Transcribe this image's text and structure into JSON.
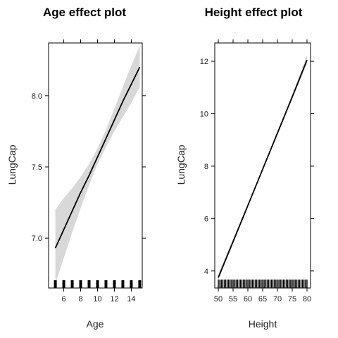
{
  "chart_data": [
    {
      "type": "line",
      "title": "Age effect plot",
      "xlabel": "Age",
      "ylabel": "LungCap",
      "xlim": [
        4.2,
        15.3
      ],
      "ylim": [
        6.65,
        8.37
      ],
      "x_ticks": [
        6,
        8,
        10,
        12,
        14
      ],
      "y_ticks": [
        7.0,
        7.5,
        8.0
      ],
      "y_tick_labels": [
        "7.0",
        "7.5",
        "8.0"
      ],
      "series": [
        {
          "x": [
            5,
            6,
            7,
            8,
            9,
            10,
            11,
            12,
            13,
            14,
            15
          ],
          "fit": [
            6.93,
            7.06,
            7.19,
            7.32,
            7.44,
            7.57,
            7.7,
            7.83,
            7.96,
            8.08,
            8.2
          ],
          "lower": [
            6.68,
            6.86,
            7.04,
            7.21,
            7.37,
            7.52,
            7.64,
            7.75,
            7.85,
            7.95,
            8.06
          ],
          "upper": [
            7.2,
            7.28,
            7.35,
            7.43,
            7.52,
            7.63,
            7.76,
            7.91,
            8.06,
            8.21,
            8.35
          ]
        }
      ],
      "rug_x": [
        5,
        6,
        7,
        8,
        9,
        10,
        11,
        12,
        13,
        14,
        15
      ]
    },
    {
      "type": "line",
      "title": "Height effect plot",
      "xlabel": "Height",
      "ylabel": "LungCap",
      "xlim": [
        48.8,
        81.2
      ],
      "ylim": [
        3.35,
        12.7
      ],
      "x_ticks": [
        50,
        55,
        60,
        65,
        70,
        75,
        80
      ],
      "y_ticks": [
        4,
        6,
        8,
        10,
        12
      ],
      "y_tick_labels": [
        "4",
        "6",
        "8",
        "10",
        "12"
      ],
      "series": [
        {
          "x": [
            50,
            55,
            60,
            65,
            70,
            75,
            80
          ],
          "fit": [
            3.75,
            5.12,
            6.5,
            7.88,
            9.26,
            10.64,
            12.05
          ],
          "lower": [
            3.65,
            5.04,
            6.45,
            7.84,
            9.21,
            10.56,
            11.9
          ],
          "upper": [
            3.9,
            5.22,
            6.56,
            7.93,
            9.33,
            10.74,
            12.23
          ]
        }
      ],
      "rug_x": [
        50,
        50.5,
        51,
        51.5,
        52,
        52.5,
        53,
        53.5,
        54,
        54.5,
        55,
        55.5,
        56,
        56.5,
        57,
        57.5,
        58,
        58.5,
        59,
        59.5,
        60,
        60.5,
        61,
        61.5,
        62,
        62.5,
        63,
        63.5,
        64,
        64.5,
        65,
        65.5,
        66,
        66.5,
        67,
        67.5,
        68,
        68.5,
        69,
        69.5,
        70,
        70.5,
        71,
        71.5,
        72,
        72.5,
        73,
        73.5,
        74,
        74.5,
        75,
        75.5,
        76,
        76.5,
        77,
        77.5,
        78,
        78.5,
        79,
        79.5,
        80
      ]
    }
  ]
}
